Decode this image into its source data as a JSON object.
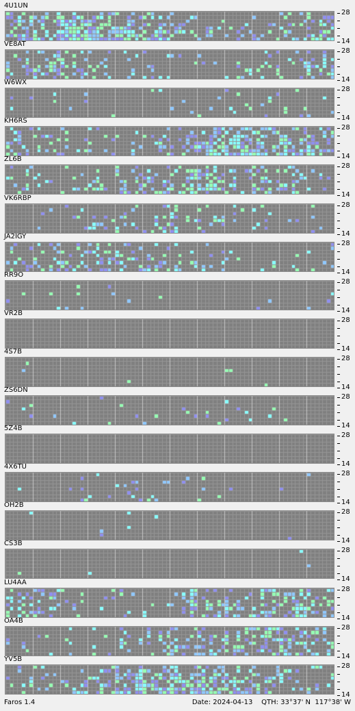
{
  "colors": {
    "grid_bg": "#7f7f7f",
    "grid_line": "#969696",
    "signal_weak": "#8f8ff0",
    "signal_mid": "#8fc8ff",
    "signal_strong": "#88ffff",
    "signal_max": "#96ffb4"
  },
  "band_scale": {
    "top": "28",
    "middle": "-",
    "bottom": "14"
  },
  "beacons": [
    {
      "callsign": "4U1UN",
      "activity": 0.85
    },
    {
      "callsign": "VE8AT",
      "activity": 0.45
    },
    {
      "callsign": "W6WX",
      "activity": 0.12
    },
    {
      "callsign": "KH6RS",
      "activity": 0.7
    },
    {
      "callsign": "ZL6B",
      "activity": 0.55
    },
    {
      "callsign": "VK6RBP",
      "activity": 0.25
    },
    {
      "callsign": "JA2IGY",
      "activity": 0.4
    },
    {
      "callsign": "RR9O",
      "activity": 0.04
    },
    {
      "callsign": "VR2B",
      "activity": 0.0
    },
    {
      "callsign": "4S7B",
      "activity": 0.01
    },
    {
      "callsign": "ZS6DN",
      "activity": 0.08
    },
    {
      "callsign": "5Z4B",
      "activity": 0.0
    },
    {
      "callsign": "4X6TU",
      "activity": 0.1
    },
    {
      "callsign": "OH2B",
      "activity": 0.04
    },
    {
      "callsign": "CS3B",
      "activity": 0.01
    },
    {
      "callsign": "LU4AA",
      "activity": 0.55
    },
    {
      "callsign": "OA4B",
      "activity": 0.5
    },
    {
      "callsign": "YV5B",
      "activity": 0.75
    }
  ],
  "status": {
    "app_name": "Faros 1.4",
    "date_label": "Date: 2024-04-13",
    "qth_label": "QTH: 33°37' N  117°38' W"
  }
}
